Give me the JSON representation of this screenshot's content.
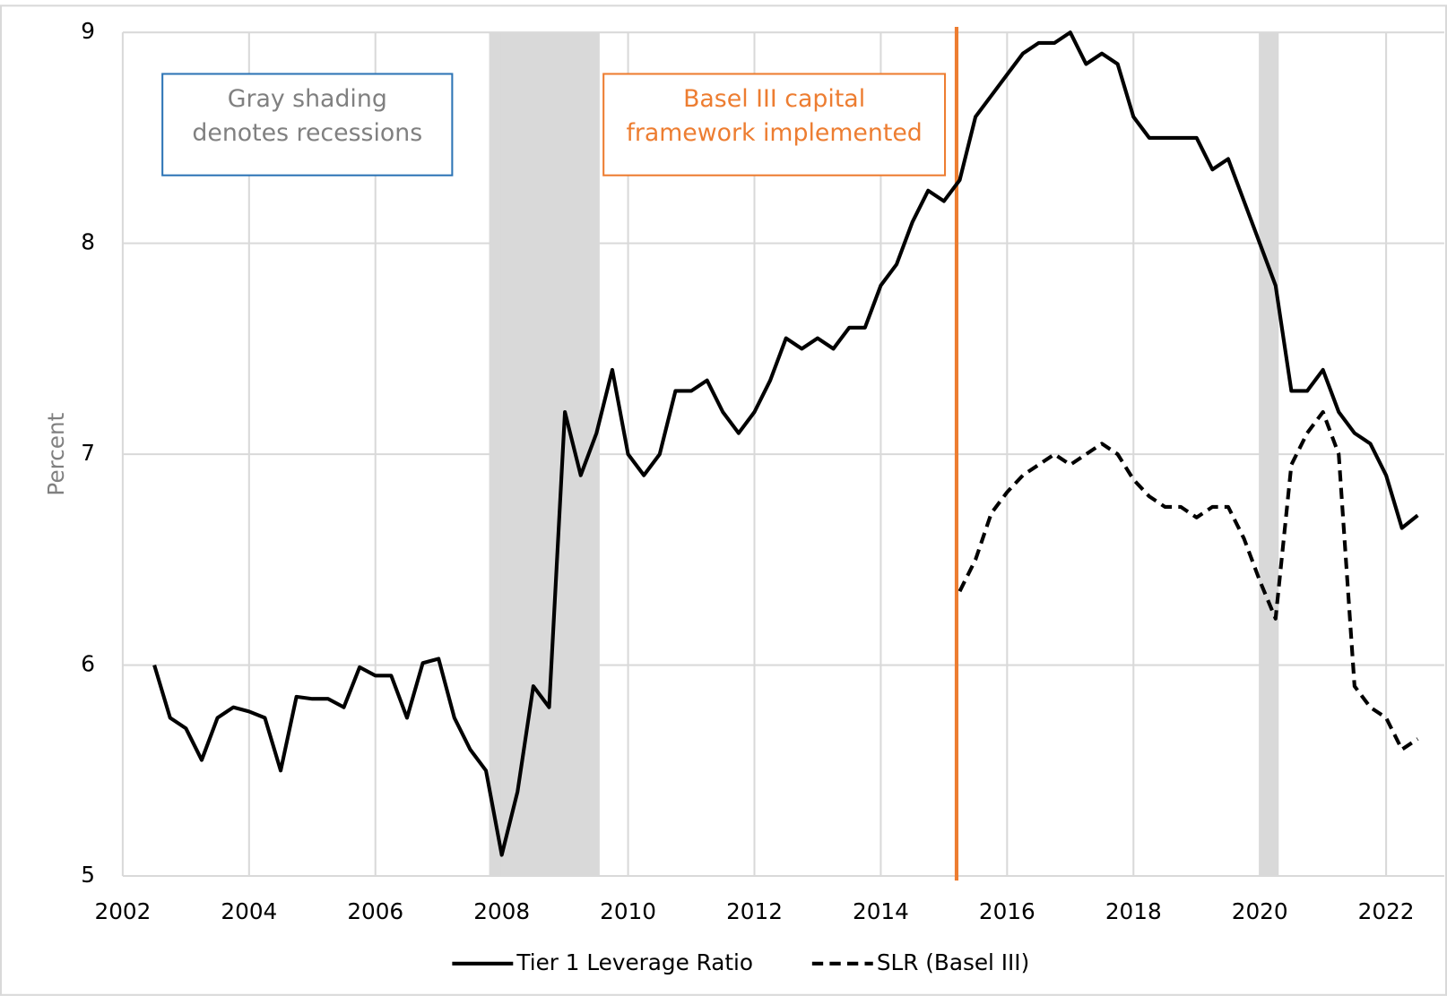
{
  "chart_data": {
    "type": "line",
    "y_label": "Percent",
    "x": [
      2002.5,
      2002.75,
      2003,
      2003.25,
      2003.5,
      2003.75,
      2004,
      2004.25,
      2004.5,
      2004.75,
      2005,
      2005.25,
      2005.5,
      2005.75,
      2006,
      2006.25,
      2006.5,
      2006.75,
      2007,
      2007.25,
      2007.5,
      2007.75,
      2008,
      2008.25,
      2008.5,
      2008.75,
      2009,
      2009.25,
      2009.5,
      2009.75,
      2010,
      2010.25,
      2010.5,
      2010.75,
      2011,
      2011.25,
      2011.5,
      2011.75,
      2012,
      2012.25,
      2012.5,
      2012.75,
      2013,
      2013.25,
      2013.5,
      2013.75,
      2014,
      2014.25,
      2014.5,
      2014.75,
      2015,
      2015.25,
      2015.5,
      2015.75,
      2016,
      2016.25,
      2016.5,
      2016.75,
      2017,
      2017.25,
      2017.5,
      2017.75,
      2018,
      2018.25,
      2018.5,
      2018.75,
      2019,
      2019.25,
      2019.5,
      2019.75,
      2020,
      2020.25,
      2020.5,
      2020.75,
      2021,
      2021.25,
      2021.5,
      2021.75,
      2022,
      2022.25,
      2022.5
    ],
    "series": [
      {
        "name": "Tier 1 Leverage Ratio",
        "color": "#000000",
        "dash": false,
        "values": [
          6.0,
          5.75,
          5.7,
          5.55,
          5.75,
          5.8,
          5.78,
          5.75,
          5.5,
          5.85,
          5.84,
          5.84,
          5.8,
          5.99,
          5.95,
          5.95,
          5.75,
          6.01,
          6.03,
          5.75,
          5.6,
          5.5,
          5.1,
          5.4,
          5.9,
          5.8,
          7.2,
          6.9,
          7.1,
          7.4,
          7.0,
          6.9,
          7.0,
          7.3,
          7.3,
          7.35,
          7.2,
          7.1,
          7.2,
          7.35,
          7.55,
          7.5,
          7.55,
          7.5,
          7.6,
          7.6,
          7.8,
          7.9,
          8.1,
          8.25,
          8.2,
          8.3,
          8.6,
          8.7,
          8.8,
          8.9,
          8.95,
          8.95,
          9.0,
          8.85,
          8.9,
          8.85,
          8.6,
          8.5,
          8.5,
          8.5,
          8.5,
          8.35,
          8.4,
          8.2,
          8.0,
          7.8,
          7.3,
          7.3,
          7.4,
          7.2,
          7.1,
          7.05,
          6.9,
          6.65,
          6.71
        ]
      },
      {
        "name": "SLR (Basel III)",
        "color": "#000000",
        "dash": true,
        "values": [
          null,
          null,
          null,
          null,
          null,
          null,
          null,
          null,
          null,
          null,
          null,
          null,
          null,
          null,
          null,
          null,
          null,
          null,
          null,
          null,
          null,
          null,
          null,
          null,
          null,
          null,
          null,
          null,
          null,
          null,
          null,
          null,
          null,
          null,
          null,
          null,
          null,
          null,
          null,
          null,
          null,
          null,
          null,
          null,
          null,
          null,
          null,
          null,
          null,
          null,
          null,
          6.35,
          6.5,
          6.72,
          6.82,
          6.9,
          6.95,
          7.0,
          6.95,
          7.0,
          7.05,
          7.0,
          6.88,
          6.8,
          6.75,
          6.75,
          6.7,
          6.75,
          6.75,
          6.6,
          6.4,
          6.22,
          6.95,
          7.1,
          7.2,
          7.0,
          5.9,
          5.8,
          5.75,
          5.6,
          5.65
        ]
      }
    ],
    "xlim": [
      2002,
      2022.92
    ],
    "xticks": [
      2002,
      2004,
      2006,
      2008,
      2010,
      2012,
      2014,
      2016,
      2018,
      2020,
      2022
    ],
    "ylim": [
      5,
      9
    ],
    "yticks": [
      5,
      6,
      7,
      8,
      9
    ],
    "grid": true,
    "recessions": [
      [
        2007.8,
        2009.55
      ],
      [
        2020.0,
        2020.3
      ]
    ],
    "recession_color": "#d9d9d9",
    "vline": {
      "x": 2015.2,
      "color": "#ed7d31"
    },
    "annotations": [
      {
        "lines": [
          "Gray shading",
          "denotes recessions"
        ],
        "color": "#808080",
        "border": "#2e75b6"
      },
      {
        "lines": [
          "Basel III capital",
          "framework implemented"
        ],
        "color": "#ed7d31",
        "border": "#ed7d31"
      }
    ],
    "legend": "bottom"
  }
}
